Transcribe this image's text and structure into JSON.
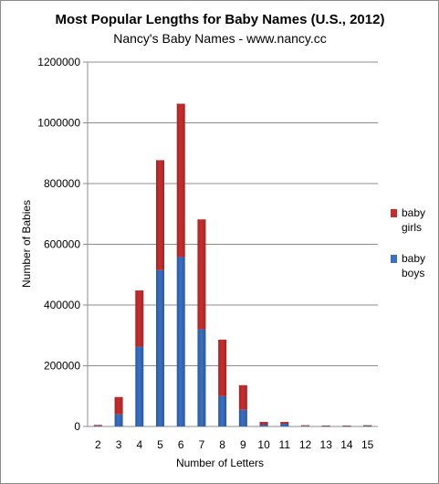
{
  "chart_data": {
    "type": "bar",
    "stacked": true,
    "title": "Most Popular Lengths for Baby Names (U.S., 2012)",
    "subtitle": "Nancy's Baby Names - www.nancy.cc",
    "xlabel": "Number of Letters",
    "ylabel": "Number of Babies",
    "categories": [
      "2",
      "3",
      "4",
      "5",
      "6",
      "7",
      "8",
      "9",
      "10",
      "11",
      "12",
      "13",
      "14",
      "15"
    ],
    "series": [
      {
        "name": "baby boys",
        "color": "#3a70c2",
        "values": [
          2000,
          40000,
          263000,
          515000,
          558000,
          320000,
          100000,
          55000,
          6000,
          9000,
          2000,
          1000,
          1000,
          3000
        ]
      },
      {
        "name": "baby girls",
        "color": "#c62e2e",
        "values": [
          3000,
          57000,
          185000,
          362000,
          505000,
          362000,
          186000,
          81000,
          9000,
          6000,
          2000,
          2000,
          2000,
          1000
        ]
      }
    ],
    "ylim": [
      0,
      1200000
    ],
    "yticks": [
      "0",
      "200000",
      "400000",
      "600000",
      "800000",
      "1000000",
      "1200000"
    ],
    "ytick_values": [
      0,
      200000,
      400000,
      600000,
      800000,
      1000000,
      1200000
    ],
    "grid": true,
    "legend": {
      "placement": "right",
      "entries": [
        {
          "line1": "baby",
          "line2": "girls",
          "color": "#c62e2e"
        },
        {
          "line1": "baby",
          "line2": "boys",
          "color": "#3a70c2"
        }
      ]
    }
  }
}
